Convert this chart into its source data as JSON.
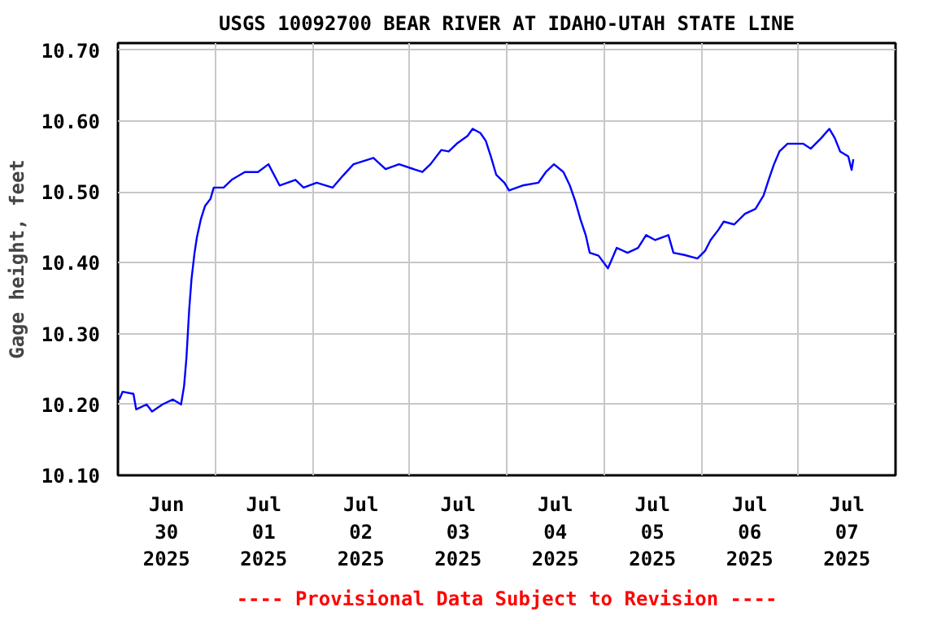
{
  "chart_data": {
    "type": "line",
    "title": "USGS 10092700 BEAR RIVER AT IDAHO-UTAH STATE LINE",
    "ylabel": "Gage height, feet",
    "annotations": [
      "---- Provisional Data Subject to Revision ----"
    ],
    "xlim": [
      "2025-06-30T00:00",
      "2025-07-08T00:00"
    ],
    "xticks": [
      {
        "value": "2025-06-30T12:00",
        "label": "Jun\n30\n2025"
      },
      {
        "value": "2025-07-01T00:00",
        "label": null
      },
      {
        "value": "2025-07-01T12:00",
        "label": "Jul\n01\n2025"
      },
      {
        "value": "2025-07-02T00:00",
        "label": null
      },
      {
        "value": "2025-07-02T12:00",
        "label": "Jul\n02\n2025"
      },
      {
        "value": "2025-07-03T00:00",
        "label": null
      },
      {
        "value": "2025-07-03T12:00",
        "label": "Jul\n03\n2025"
      },
      {
        "value": "2025-07-04T00:00",
        "label": null
      },
      {
        "value": "2025-07-04T12:00",
        "label": "Jul\n04\n2025"
      },
      {
        "value": "2025-07-05T00:00",
        "label": null
      },
      {
        "value": "2025-07-05T12:00",
        "label": "Jul\n05\n2025"
      },
      {
        "value": "2025-07-06T00:00",
        "label": null
      },
      {
        "value": "2025-07-06T12:00",
        "label": "Jul\n06\n2025"
      },
      {
        "value": "2025-07-07T00:00",
        "label": null
      },
      {
        "value": "2025-07-07T12:00",
        "label": "Jul\n07\n2025"
      }
    ],
    "ylim": [
      10.1,
      10.71
    ],
    "yticks": [
      {
        "value": 10.1,
        "label": "10.10"
      },
      {
        "value": 10.2,
        "label": "10.20"
      },
      {
        "value": 10.3,
        "label": "10.30"
      },
      {
        "value": 10.4,
        "label": "10.40"
      },
      {
        "value": 10.5,
        "label": "10.50"
      },
      {
        "value": 10.6,
        "label": "10.60"
      },
      {
        "value": 10.7,
        "label": "10.70"
      }
    ],
    "grid": true,
    "marker": "none",
    "line_style": "solid",
    "series": [
      {
        "color": "#0000ff",
        "x": [
          "2025-06-30T00:20",
          "2025-06-30T01:10",
          "2025-06-30T03:50",
          "2025-06-30T04:30",
          "2025-06-30T07:05",
          "2025-06-30T08:25",
          "2025-06-30T11:00",
          "2025-06-30T13:35",
          "2025-06-30T15:35",
          "2025-06-30T16:20",
          "2025-06-30T16:55",
          "2025-06-30T17:35",
          "2025-06-30T18:10",
          "2025-06-30T18:55",
          "2025-06-30T19:30",
          "2025-06-30T20:30",
          "2025-06-30T21:30",
          "2025-06-30T22:50",
          "2025-06-30T23:40",
          "2025-07-01T02:05",
          "2025-07-01T04:05",
          "2025-07-01T07:20",
          "2025-07-01T10:35",
          "2025-07-01T13:10",
          "2025-07-01T15:55",
          "2025-07-01T19:50",
          "2025-07-01T21:50",
          "2025-07-02T01:05",
          "2025-07-02T05:00",
          "2025-07-02T07:35",
          "2025-07-02T10:10",
          "2025-07-02T15:05",
          "2025-07-02T18:05",
          "2025-07-02T21:25",
          "2025-07-03T03:10",
          "2025-07-03T05:10",
          "2025-07-03T07:50",
          "2025-07-03T09:40",
          "2025-07-03T11:40",
          "2025-07-03T14:20",
          "2025-07-03T15:35",
          "2025-07-03T17:30",
          "2025-07-03T18:50",
          "2025-07-03T20:05",
          "2025-07-03T21:25",
          "2025-07-03T23:25",
          "2025-07-04T00:35",
          "2025-07-04T03:55",
          "2025-07-04T07:50",
          "2025-07-04T09:40",
          "2025-07-04T11:40",
          "2025-07-04T14:00",
          "2025-07-04T15:35",
          "2025-07-04T16:55",
          "2025-07-04T18:10",
          "2025-07-04T19:30",
          "2025-07-04T20:30",
          "2025-07-04T22:40",
          "2025-07-05T01:00",
          "2025-07-05T03:10",
          "2025-07-05T05:50",
          "2025-07-05T08:25",
          "2025-07-05T10:25",
          "2025-07-05T12:40",
          "2025-07-05T15:55",
          "2025-07-05T17:10",
          "2025-07-05T19:50",
          "2025-07-05T23:05",
          "2025-07-06T01:00",
          "2025-07-06T02:20",
          "2025-07-06T04:20",
          "2025-07-06T05:35",
          "2025-07-06T08:10",
          "2025-07-06T10:50",
          "2025-07-06T13:25",
          "2025-07-06T15:25",
          "2025-07-06T16:40",
          "2025-07-06T18:00",
          "2025-07-06T19:20",
          "2025-07-06T21:20",
          "2025-07-07T01:10",
          "2025-07-07T03:05",
          "2025-07-07T05:40",
          "2025-07-07T07:40",
          "2025-07-07T09:00",
          "2025-07-07T10:20",
          "2025-07-07T12:20",
          "2025-07-07T13:10",
          "2025-07-07T13:35"
        ],
        "values": [
          10.207,
          10.218,
          10.215,
          10.193,
          10.2,
          10.19,
          10.2,
          10.207,
          10.2,
          10.226,
          10.266,
          10.333,
          10.377,
          10.414,
          10.436,
          10.462,
          10.48,
          10.49,
          10.506,
          10.506,
          10.517,
          10.528,
          10.528,
          10.539,
          10.509,
          10.517,
          10.506,
          10.513,
          10.506,
          10.523,
          10.539,
          10.548,
          10.532,
          10.539,
          10.528,
          10.539,
          10.559,
          10.557,
          10.568,
          10.579,
          10.589,
          10.583,
          10.572,
          10.55,
          10.524,
          10.513,
          10.502,
          10.509,
          10.513,
          10.528,
          10.539,
          10.528,
          10.509,
          10.487,
          10.462,
          10.439,
          10.414,
          10.41,
          10.392,
          10.421,
          10.414,
          10.421,
          10.439,
          10.432,
          10.439,
          10.414,
          10.411,
          10.406,
          10.417,
          10.432,
          10.447,
          10.458,
          10.454,
          10.469,
          10.476,
          10.495,
          10.517,
          10.539,
          10.557,
          10.568,
          10.568,
          10.561,
          10.576,
          10.589,
          10.576,
          10.557,
          10.55,
          10.531,
          10.546
        ]
      }
    ]
  }
}
